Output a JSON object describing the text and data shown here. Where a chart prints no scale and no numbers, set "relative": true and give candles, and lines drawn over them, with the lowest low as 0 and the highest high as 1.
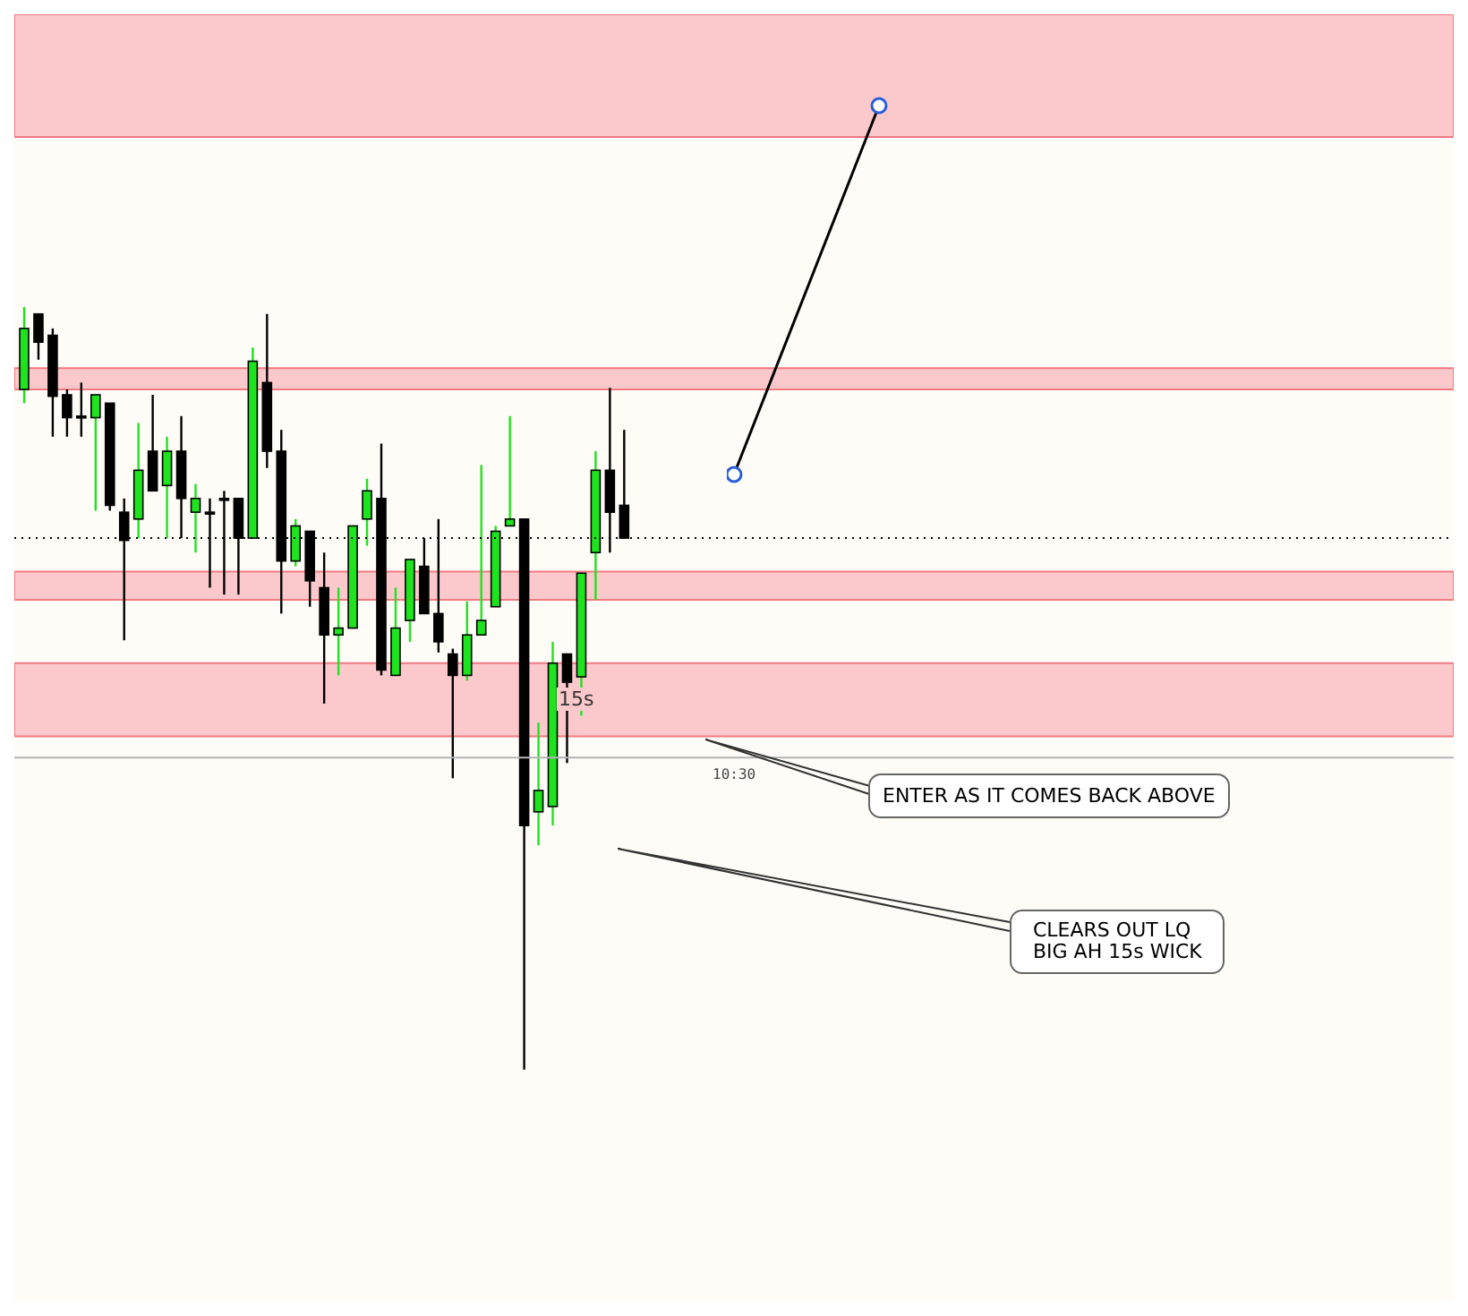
{
  "chart_data": {
    "type": "candlestick",
    "relative": true,
    "tick_labels": false,
    "categories": [
      null,
      null,
      null,
      null,
      null,
      null,
      null,
      null,
      null,
      null,
      null,
      null,
      null,
      null,
      null,
      null,
      null,
      null,
      null,
      null,
      null,
      null,
      null,
      null,
      null,
      null,
      null,
      null,
      null,
      null,
      null,
      null,
      null,
      null,
      null,
      null,
      null,
      null,
      null,
      null,
      null,
      null,
      null
    ],
    "ohlc": [
      [
        0.892,
        1.0,
        0.874,
        0.972
      ],
      [
        0.991,
        0.991,
        0.931,
        0.954
      ],
      [
        0.963,
        0.972,
        0.83,
        0.883
      ],
      [
        0.885,
        0.892,
        0.83,
        0.855
      ],
      [
        0.857,
        0.901,
        0.83,
        0.857
      ],
      [
        0.855,
        0.885,
        0.733,
        0.885
      ],
      [
        0.874,
        0.874,
        0.733,
        0.74
      ],
      [
        0.731,
        0.749,
        0.563,
        0.694
      ],
      [
        0.722,
        0.848,
        0.697,
        0.786
      ],
      [
        0.811,
        0.885,
        0.759,
        0.759
      ],
      [
        0.766,
        0.83,
        0.697,
        0.811
      ],
      [
        0.811,
        0.857,
        0.697,
        0.749
      ],
      [
        0.731,
        0.768,
        0.678,
        0.749
      ],
      [
        0.731,
        0.749,
        0.632,
        0.731
      ],
      [
        0.749,
        0.759,
        0.623,
        0.749
      ],
      [
        0.749,
        0.749,
        0.623,
        0.697
      ],
      [
        0.697,
        0.947,
        0.697,
        0.929
      ],
      [
        0.901,
        0.991,
        0.789,
        0.811
      ],
      [
        0.811,
        0.839,
        0.598,
        0.667
      ],
      [
        0.667,
        0.722,
        0.66,
        0.713
      ],
      [
        0.706,
        0.706,
        0.607,
        0.641
      ],
      [
        0.632,
        0.678,
        0.48,
        0.57
      ],
      [
        0.57,
        0.632,
        0.517,
        0.579
      ],
      [
        0.579,
        0.713,
        0.579,
        0.713
      ],
      [
        0.722,
        0.775,
        0.687,
        0.759
      ],
      [
        0.749,
        0.821,
        0.517,
        0.524
      ],
      [
        0.517,
        0.632,
        0.517,
        0.579
      ],
      [
        0.589,
        0.669,
        0.561,
        0.669
      ],
      [
        0.66,
        0.697,
        0.598,
        0.598
      ],
      [
        0.598,
        0.722,
        0.547,
        0.561
      ],
      [
        0.545,
        0.552,
        0.382,
        0.517
      ],
      [
        0.517,
        0.614,
        0.51,
        0.57
      ],
      [
        0.57,
        0.793,
        0.57,
        0.589
      ],
      [
        0.607,
        0.713,
        0.607,
        0.706
      ],
      [
        0.713,
        0.857,
        0.713,
        0.722
      ],
      [
        0.722,
        0.722,
        0.0,
        0.32
      ],
      [
        0.338,
        0.455,
        0.294,
        0.366
      ],
      [
        0.345,
        0.561,
        0.32,
        0.533
      ],
      [
        0.545,
        0.545,
        0.402,
        0.508
      ],
      [
        0.515,
        0.651,
        0.464,
        0.651
      ],
      [
        0.678,
        0.811,
        0.616,
        0.786
      ],
      [
        0.786,
        0.894,
        0.678,
        0.731
      ],
      [
        0.74,
        0.839,
        0.697,
        0.697
      ]
    ],
    "colors": [
      "#1ee31e",
      "#000000",
      "#000000",
      "#000000",
      "#000000",
      "#1ee31e",
      "#000000",
      "#000000",
      "#1ee31e",
      "#000000",
      "#1ee31e",
      "#000000",
      "#1ee31e",
      "#000000",
      "#000000",
      "#000000",
      "#1ee31e",
      "#000000",
      "#000000",
      "#1ee31e",
      "#000000",
      "#000000",
      "#1ee31e",
      "#1ee31e",
      "#1ee31e",
      "#000000",
      "#1ee31e",
      "#1ee31e",
      "#000000",
      "#000000",
      "#000000",
      "#1ee31e",
      "#1ee31e",
      "#1ee31e",
      "#1ee31e",
      "#000000",
      "#1ee31e",
      "#1ee31e",
      "#000000",
      "#1ee31e",
      "#1ee31e",
      "#000000",
      "#000000"
    ],
    "bands": [
      {
        "axis": "y",
        "from": 1.223,
        "to": 1.384,
        "color": "#fbc9cc"
      },
      {
        "axis": "y",
        "from": 0.892,
        "to": 0.92,
        "color": "#fbc9cc"
      },
      {
        "axis": "y",
        "from": 0.616,
        "to": 0.653,
        "color": "#fbc9cc"
      },
      {
        "axis": "y",
        "from": 0.437,
        "to": 0.533,
        "color": "#fbc9cc"
      }
    ],
    "ref_lines": [
      {
        "axis": "y",
        "value": 0.697,
        "color": "#000000",
        "line_style": "dotted"
      },
      {
        "axis": "y",
        "value": 0.409,
        "color": "#b4b4b4",
        "line_style": "solid"
      }
    ],
    "annotations": [
      "15s",
      "ENTER AS IT COMES BACK ABOVE",
      "CLEARS OUT LQ\nBIG AH 15s WICK",
      "10:30"
    ]
  }
}
